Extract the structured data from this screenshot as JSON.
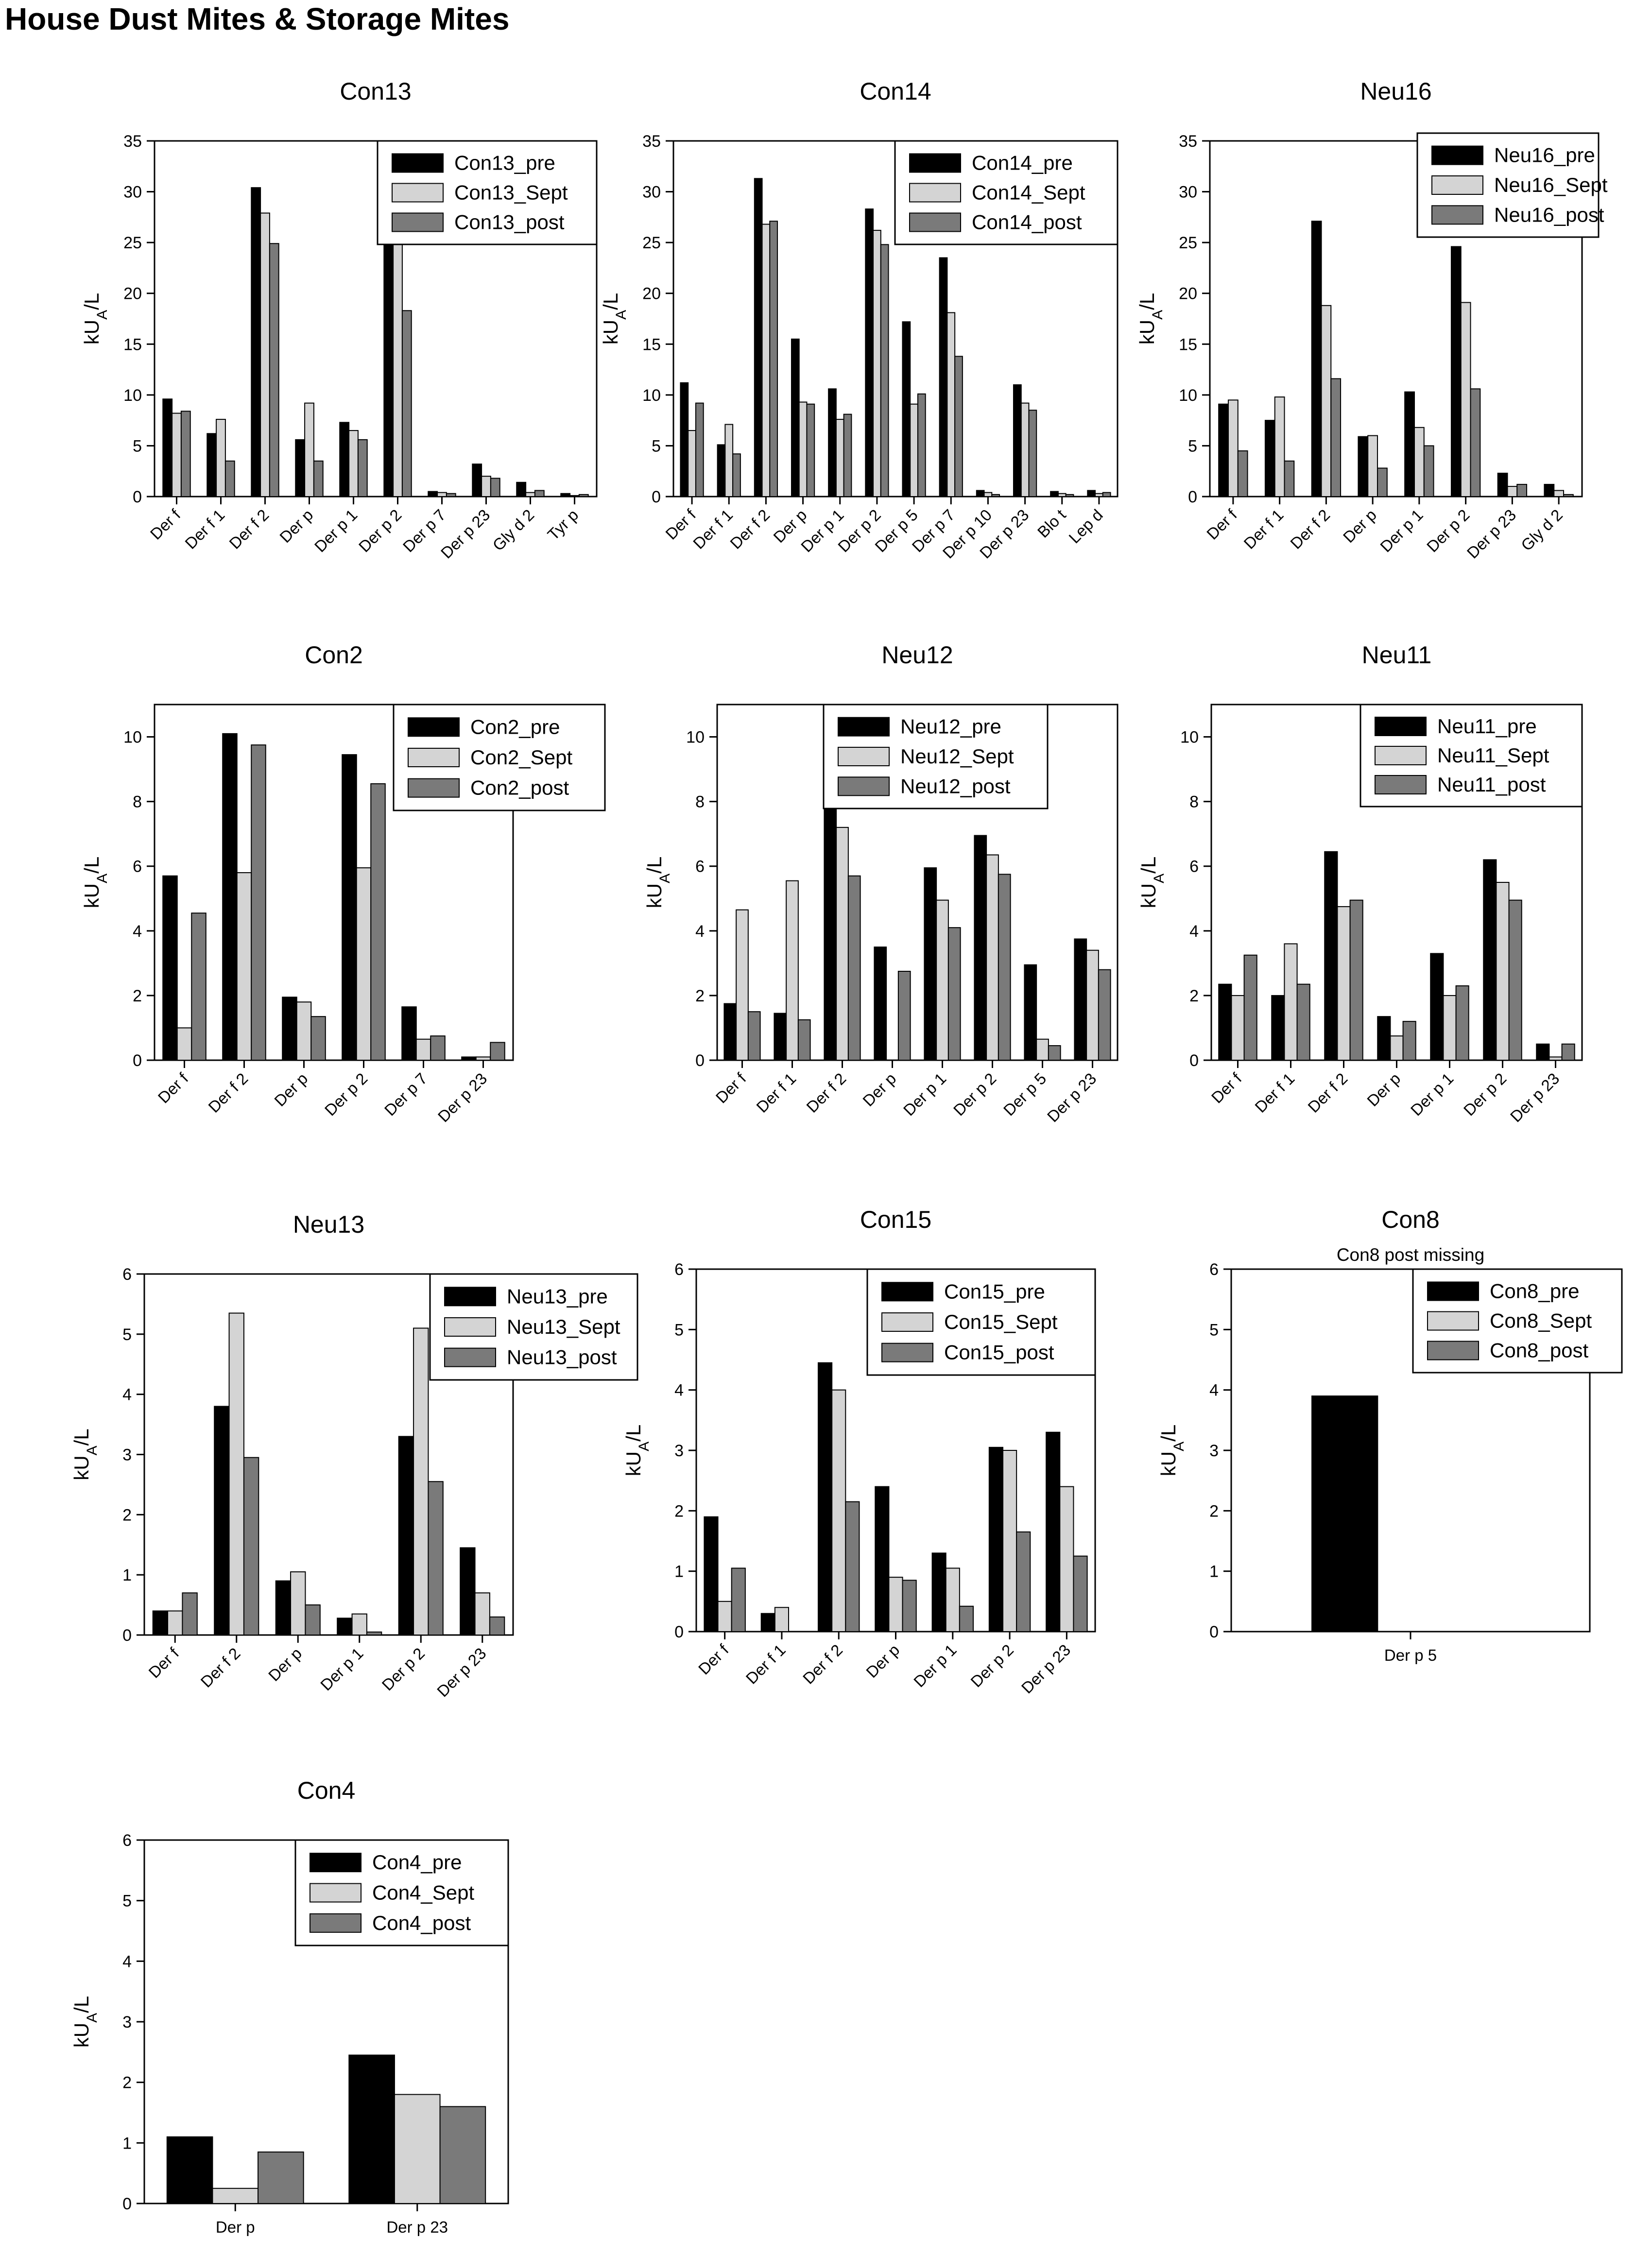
{
  "title": "House Dust Mites & Storage Mites",
  "series_colors": {
    "pre": "#000000",
    "Sept": "#d4d4d4",
    "post": "#7a7a7a"
  },
  "chart_data": [
    {
      "type": "bar",
      "title": "Con13",
      "subtitle": "",
      "ylabel": "kU_A/L",
      "ylim": [
        0,
        35
      ],
      "yticks": [
        0,
        5,
        10,
        15,
        20,
        25,
        30,
        35
      ],
      "legend_position": "top-right",
      "categories": [
        "Der f",
        "Der f 1",
        "Der f 2",
        "Der p",
        "Der p 1",
        "Der p 2",
        "Der p 7",
        "Der p 23",
        "Gly d 2",
        "Tyr p"
      ],
      "series": [
        {
          "name": "Con13_pre",
          "key": "pre",
          "values": [
            9.6,
            6.2,
            30.4,
            5.6,
            7.3,
            26.8,
            0.5,
            3.2,
            1.4,
            0.3
          ]
        },
        {
          "name": "Con13_Sept",
          "key": "Sept",
          "values": [
            8.2,
            7.6,
            27.9,
            9.2,
            6.5,
            25.2,
            0.4,
            2.0,
            0.4,
            0.1
          ]
        },
        {
          "name": "Con13_post",
          "key": "post",
          "values": [
            8.4,
            3.5,
            24.9,
            3.5,
            5.6,
            18.3,
            0.3,
            1.8,
            0.6,
            0.2
          ]
        }
      ]
    },
    {
      "type": "bar",
      "title": "Con14",
      "subtitle": "",
      "ylabel": "kU_A/L",
      "ylim": [
        0,
        35
      ],
      "yticks": [
        0,
        5,
        10,
        15,
        20,
        25,
        30,
        35
      ],
      "legend_position": "top-right",
      "categories": [
        "Der f",
        "Der f 1",
        "Der f 2",
        "Der p",
        "Der p 1",
        "Der p 2",
        "Der p 5",
        "Der p 7",
        "Der p 10",
        "Der p 23",
        "Blo t",
        "Lep d"
      ],
      "series": [
        {
          "name": "Con14_pre",
          "key": "pre",
          "values": [
            11.2,
            5.1,
            31.3,
            15.5,
            10.6,
            28.3,
            17.2,
            23.5,
            0.6,
            11.0,
            0.5,
            0.6
          ]
        },
        {
          "name": "Con14_Sept",
          "key": "Sept",
          "values": [
            6.5,
            7.1,
            26.8,
            9.3,
            7.6,
            26.2,
            9.1,
            18.1,
            0.4,
            9.2,
            0.3,
            0.3
          ]
        },
        {
          "name": "Con14_post",
          "key": "post",
          "values": [
            9.2,
            4.2,
            27.1,
            9.1,
            8.1,
            24.8,
            10.1,
            13.8,
            0.2,
            8.5,
            0.2,
            0.4
          ]
        }
      ]
    },
    {
      "type": "bar",
      "title": "Neu16",
      "subtitle": "",
      "ylabel": "kU_A/L",
      "ylim": [
        0,
        35
      ],
      "yticks": [
        0,
        5,
        10,
        15,
        20,
        25,
        30,
        35
      ],
      "legend_position": "top-right",
      "categories": [
        "Der f",
        "Der f 1",
        "Der f 2",
        "Der p",
        "Der p 1",
        "Der p 2",
        "Der p 23",
        "Gly d 2"
      ],
      "series": [
        {
          "name": "Neu16_pre",
          "key": "pre",
          "values": [
            9.1,
            7.5,
            27.1,
            5.9,
            10.3,
            24.6,
            2.3,
            1.2
          ]
        },
        {
          "name": "Neu16_Sept",
          "key": "Sept",
          "values": [
            9.5,
            9.8,
            18.8,
            6.0,
            6.8,
            19.1,
            1.0,
            0.6
          ]
        },
        {
          "name": "Neu16_post",
          "key": "post",
          "values": [
            4.5,
            3.5,
            11.6,
            2.8,
            5.0,
            10.6,
            1.2,
            0.2
          ]
        }
      ]
    },
    {
      "type": "bar",
      "title": "Con2",
      "subtitle": "",
      "ylabel": "kU_A/L",
      "ylim": [
        0,
        11
      ],
      "yticks": [
        0,
        2,
        4,
        6,
        8,
        10
      ],
      "legend_position": "top-right",
      "categories": [
        "Der f",
        "Der f 2",
        "Der p",
        "Der p 2",
        "Der p 7",
        "Der p 23"
      ],
      "series": [
        {
          "name": "Con2_pre",
          "key": "pre",
          "values": [
            5.7,
            10.1,
            1.95,
            9.45,
            1.65,
            0.1
          ]
        },
        {
          "name": "Con2_Sept",
          "key": "Sept",
          "values": [
            1.0,
            5.8,
            1.8,
            5.95,
            0.65,
            0.1
          ]
        },
        {
          "name": "Con2_post",
          "key": "post",
          "values": [
            4.55,
            9.75,
            1.35,
            8.55,
            0.75,
            0.55
          ]
        }
      ]
    },
    {
      "type": "bar",
      "title": "Neu12",
      "subtitle": "",
      "ylabel": "kU_A/L",
      "ylim": [
        0,
        11
      ],
      "yticks": [
        0,
        2,
        4,
        6,
        8,
        10
      ],
      "legend_position": "top-right",
      "categories": [
        "Der f",
        "Der f 1",
        "Der f 2",
        "Der p",
        "Der p 1",
        "Der p 2",
        "Der p 5",
        "Der p 23"
      ],
      "series": [
        {
          "name": "Neu12_pre",
          "key": "pre",
          "values": [
            1.75,
            1.45,
            7.9,
            3.5,
            5.95,
            6.95,
            2.95,
            3.75
          ]
        },
        {
          "name": "Neu12_Sept",
          "key": "Sept",
          "values": [
            4.65,
            5.55,
            7.2,
            0.0,
            4.95,
            6.35,
            0.65,
            3.4
          ]
        },
        {
          "name": "Neu12_post",
          "key": "post",
          "values": [
            1.5,
            1.25,
            5.7,
            2.75,
            4.1,
            5.75,
            0.45,
            2.8
          ]
        }
      ]
    },
    {
      "type": "bar",
      "title": "Neu11",
      "subtitle": "",
      "ylabel": "kU_A/L",
      "ylim": [
        0,
        11
      ],
      "yticks": [
        0,
        2,
        4,
        6,
        8,
        10
      ],
      "legend_position": "top-right",
      "categories": [
        "Der f",
        "Der f 1",
        "Der f 2",
        "Der p",
        "Der p 1",
        "Der p 2",
        "Der p 23"
      ],
      "series": [
        {
          "name": "Neu11_pre",
          "key": "pre",
          "values": [
            2.35,
            2.0,
            6.45,
            1.35,
            3.3,
            6.2,
            0.5
          ]
        },
        {
          "name": "Neu11_Sept",
          "key": "Sept",
          "values": [
            2.0,
            3.6,
            4.75,
            0.75,
            2.0,
            5.5,
            0.1
          ]
        },
        {
          "name": "Neu11_post",
          "key": "post",
          "values": [
            3.25,
            2.35,
            4.95,
            1.2,
            2.3,
            4.95,
            0.5
          ]
        }
      ]
    },
    {
      "type": "bar",
      "title": "Neu13",
      "subtitle": "",
      "ylabel": "kU_A/L",
      "ylim": [
        0,
        6
      ],
      "yticks": [
        0,
        1,
        2,
        3,
        4,
        5,
        6
      ],
      "legend_position": "top-right",
      "categories": [
        "Der f",
        "Der f 2",
        "Der p",
        "Der p 1",
        "Der p 2",
        "Der p 23"
      ],
      "series": [
        {
          "name": "Neu13_pre",
          "key": "pre",
          "values": [
            0.4,
            3.8,
            0.9,
            0.28,
            3.3,
            1.45
          ]
        },
        {
          "name": "Neu13_Sept",
          "key": "Sept",
          "values": [
            0.4,
            5.35,
            1.05,
            0.35,
            5.1,
            0.7
          ]
        },
        {
          "name": "Neu13_post",
          "key": "post",
          "values": [
            0.7,
            2.95,
            0.5,
            0.05,
            2.55,
            0.3
          ]
        }
      ]
    },
    {
      "type": "bar",
      "title": "Con15",
      "subtitle": "",
      "ylabel": "kU_A/L",
      "ylim": [
        0,
        6
      ],
      "yticks": [
        0,
        1,
        2,
        3,
        4,
        5,
        6
      ],
      "legend_position": "top-right",
      "categories": [
        "Der f",
        "Der f 1",
        "Der f 2",
        "Der p",
        "Der p 1",
        "Der p 2",
        "Der p 23"
      ],
      "series": [
        {
          "name": "Con15_pre",
          "key": "pre",
          "values": [
            1.9,
            0.3,
            4.45,
            2.4,
            1.3,
            3.05,
            3.3
          ]
        },
        {
          "name": "Con15_Sept",
          "key": "Sept",
          "values": [
            0.5,
            0.4,
            4.0,
            0.9,
            1.05,
            3.0,
            2.4
          ]
        },
        {
          "name": "Con15_post",
          "key": "post",
          "values": [
            1.05,
            0.0,
            2.15,
            0.85,
            0.42,
            1.65,
            1.25
          ]
        }
      ]
    },
    {
      "type": "bar",
      "title": "Con8",
      "subtitle": "Con8 post missing",
      "ylabel": "kU_A/L",
      "ylim": [
        0,
        6
      ],
      "yticks": [
        0,
        1,
        2,
        3,
        4,
        5,
        6
      ],
      "legend_position": "top-right",
      "categories": [
        "Der p 5"
      ],
      "series": [
        {
          "name": "Con8_pre",
          "key": "pre",
          "values": [
            3.9
          ]
        },
        {
          "name": "Con8_Sept",
          "key": "Sept",
          "values": [
            0
          ]
        },
        {
          "name": "Con8_post",
          "key": "post",
          "values": [
            0
          ]
        }
      ]
    },
    {
      "type": "bar",
      "title": "Con4",
      "subtitle": "",
      "ylabel": "kU_A/L",
      "ylim": [
        0,
        6
      ],
      "yticks": [
        0,
        1,
        2,
        3,
        4,
        5,
        6
      ],
      "legend_position": "top-center",
      "categories": [
        "Der p",
        "Der p 23"
      ],
      "series": [
        {
          "name": "Con4_pre",
          "key": "pre",
          "values": [
            1.1,
            2.45
          ]
        },
        {
          "name": "Con4_Sept",
          "key": "Sept",
          "values": [
            0.25,
            1.8
          ]
        },
        {
          "name": "Con4_post",
          "key": "post",
          "values": [
            0.85,
            1.6
          ]
        }
      ]
    }
  ]
}
